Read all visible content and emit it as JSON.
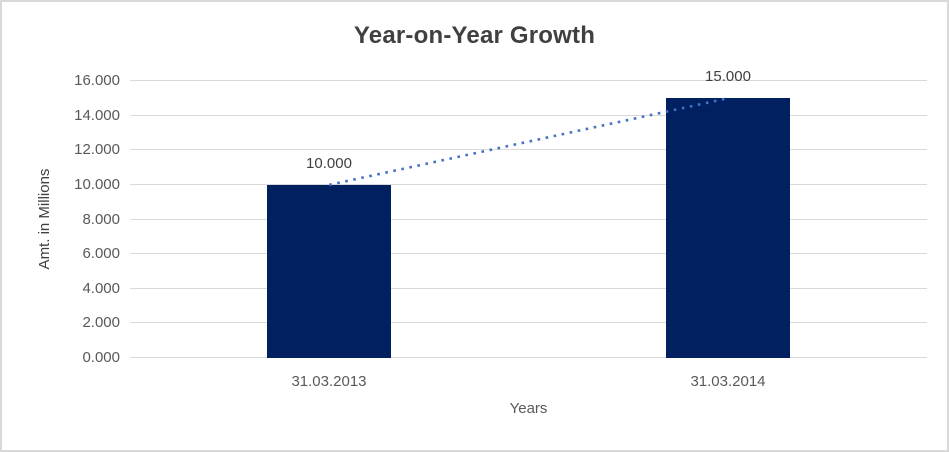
{
  "chart_data": {
    "type": "bar",
    "title": "Year-on-Year Growth",
    "xlabel": "Years",
    "ylabel": "Amt. in Millions",
    "categories": [
      "31.03.2013",
      "31.03.2014"
    ],
    "values": [
      10,
      15
    ],
    "value_labels": [
      "10.000",
      "15.000"
    ],
    "ylim": [
      0,
      16
    ],
    "ytick_step": 2,
    "ytick_labels": [
      "0.000",
      "2.000",
      "4.000",
      "6.000",
      "8.000",
      "10.000",
      "12.000",
      "14.000",
      "16.000"
    ],
    "grid": true,
    "legend": "none",
    "trendline": {
      "style": "dotted",
      "from_category": "31.03.2013",
      "from_value": 10,
      "to_category": "31.03.2014",
      "to_value": 15,
      "color": "#4472C4"
    },
    "colors": {
      "bar": "#002060",
      "trendline": "#4472C4",
      "gridline": "#D9D9D9",
      "title_text": "#404040",
      "axis_text": "#595959",
      "data_label_text": "#404040",
      "chart_border": "#D9D9D9",
      "background": "#FFFFFF"
    }
  }
}
